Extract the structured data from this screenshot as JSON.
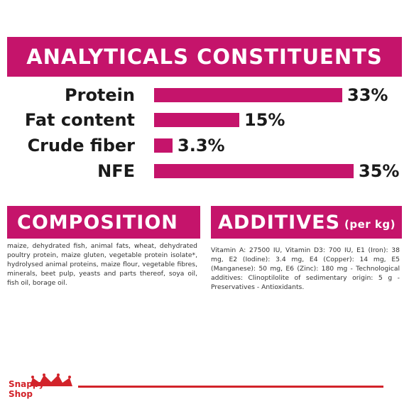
{
  "analytics": {
    "title": "ANALYTICALS CONSTITUENTS",
    "rows": [
      {
        "label": "Protein",
        "value": 33,
        "value_text": "33%"
      },
      {
        "label": "Fat content",
        "value": 15,
        "value_text": "15%"
      },
      {
        "label": "Crude fiber",
        "value": 3.3,
        "value_text": "3.3%"
      },
      {
        "label": "NFE",
        "value": 35,
        "value_text": "35%"
      }
    ]
  },
  "composition": {
    "title": "COMPOSITION",
    "text": "maize, dehydrated fish, animal fats, wheat, dehydrated poultry protein, maize gluten, vegetable protein isolate*, hydrolysed animal proteins, maize flour, vegetable fibres, minerals, beet pulp, yeasts and parts thereof, soya oil, fish oil, borage oil."
  },
  "additives": {
    "title": "ADDITIVES",
    "subtitle": "(per kg)",
    "text": "Vitamin A: 27500 IU, Vitamin D3: 700 IU, E1 (Iron): 38 mg, E2 (Iodine): 3.4 mg, E4 (Copper): 14 mg, E5 (Manganese): 50 mg, E6 (Zinc): 180 mg - Technological additives: Clinoptilolite of sedimentary origin: 5 g - Preservatives - Antioxidants."
  },
  "logo": {
    "line1": "Snappy",
    "line2": "Shop",
    "icon": "crown-icon"
  },
  "colors": {
    "accent": "#c5146b",
    "brand_red": "#d2232a"
  }
}
